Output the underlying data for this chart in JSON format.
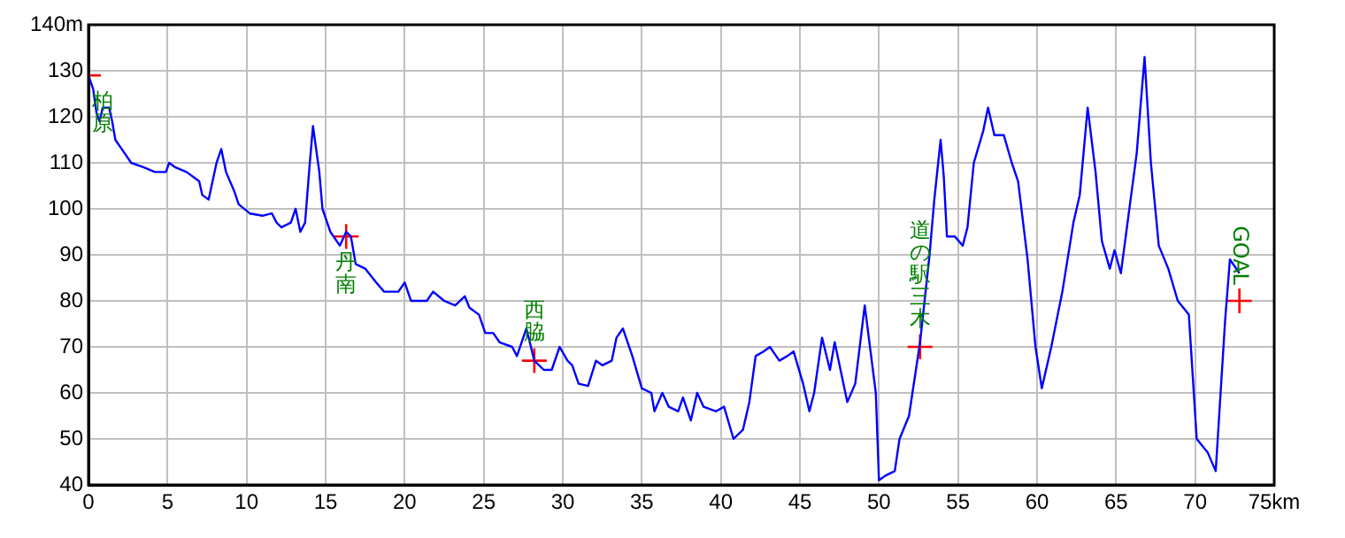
{
  "chart_data": {
    "type": "line",
    "xlim": [
      0,
      75
    ],
    "ylim": [
      40,
      140
    ],
    "xticks": [
      0,
      5,
      10,
      15,
      20,
      25,
      30,
      35,
      40,
      45,
      50,
      55,
      60,
      65,
      70,
      {
        "value": 75,
        "label": "75km"
      }
    ],
    "yticks": [
      40,
      50,
      60,
      70,
      80,
      90,
      100,
      110,
      120,
      130,
      {
        "value": 140,
        "label": "140m"
      }
    ],
    "grid": true,
    "legend": false,
    "marker": "none",
    "line_style": "solid",
    "series": [
      {
        "color": "#0000ff",
        "x": [
          0,
          0.3,
          0.5,
          0.7,
          0.9,
          1.3,
          1.5,
          1.7,
          2.1,
          2.7,
          3.5,
          4.2,
          4.9,
          5.1,
          5.5,
          6.2,
          7.0,
          7.2,
          7.6,
          8.1,
          8.4,
          8.7,
          9.2,
          9.5,
          10.2,
          11,
          11.6,
          11.9,
          12.2,
          12.8,
          13.1,
          13.4,
          13.7,
          14.0,
          14.2,
          14.6,
          14.8,
          15.3,
          15.9,
          16.3,
          16.6,
          16.9,
          17.5,
          18.2,
          18.7,
          19.6,
          20.0,
          20.4,
          21.4,
          21.8,
          22.5,
          23.2,
          23.8,
          24.1,
          24.7,
          25.1,
          25.6,
          26.0,
          26.8,
          27.1,
          27.7,
          28.2,
          28.8,
          29.3,
          29.8,
          30.3,
          30.6,
          31.0,
          31.6,
          32.1,
          32.5,
          33.1,
          33.4,
          33.8,
          34.4,
          35.0,
          35.6,
          35.8,
          36.3,
          36.7,
          37.3,
          37.6,
          38.1,
          38.5,
          38.9,
          39.7,
          40.2,
          40.8,
          41.4,
          41.8,
          42.2,
          42.7,
          43.1,
          43.7,
          44.2,
          44.6,
          45.2,
          45.6,
          45.9,
          46.4,
          46.9,
          47.2,
          48.0,
          48.5,
          49.1,
          49.8,
          50.0,
          50.4,
          51.0,
          51.3,
          51.9,
          52.6,
          53.2,
          53.5,
          53.9,
          54.1,
          54.3,
          54.8,
          55.3,
          55.6,
          56.0,
          56.6,
          56.9,
          57.3,
          57.9,
          58.4,
          58.8,
          59.4,
          59.9,
          60.3,
          60.9,
          61.6,
          62.3,
          62.7,
          63.2,
          63.7,
          64.1,
          64.6,
          64.9,
          65.3,
          65.8,
          66.3,
          66.8,
          67.2,
          67.7,
          68.3,
          68.9,
          69.6,
          70.1,
          70.8,
          71.3,
          71.9,
          72.2,
          72.8
        ],
        "values": [
          129,
          126,
          121,
          119,
          122,
          122,
          119,
          115,
          113,
          110,
          109,
          108,
          108,
          110,
          109,
          108,
          106,
          103,
          102,
          110,
          113,
          108,
          104,
          101,
          99,
          98.5,
          99,
          97,
          96,
          97,
          100,
          95,
          97,
          110,
          118,
          108,
          100,
          95,
          92,
          95,
          94,
          88,
          87,
          84,
          82,
          82,
          84,
          80,
          80,
          82,
          80,
          79,
          81,
          78.5,
          77,
          73,
          73,
          71,
          70,
          68,
          74,
          67,
          65,
          65,
          70,
          67,
          66,
          62,
          61.5,
          67,
          66,
          67,
          72,
          74,
          68,
          61,
          60,
          56,
          60,
          57,
          56,
          59,
          54,
          60,
          57,
          56,
          57,
          50,
          52,
          58,
          68,
          69,
          70,
          67,
          68,
          69,
          62,
          56,
          60,
          72,
          65,
          71,
          58,
          62,
          79,
          60,
          41,
          42,
          43,
          50,
          55,
          71,
          90,
          102,
          115,
          107,
          94,
          94,
          92,
          96,
          110,
          117,
          122,
          116,
          116,
          110,
          106,
          89,
          70,
          61,
          70,
          82,
          97,
          103,
          122,
          108,
          93,
          87,
          91,
          86,
          99,
          112,
          133,
          110,
          92,
          87,
          80,
          77,
          50,
          47,
          43,
          76,
          89,
          86
        ]
      },
      {
        "type": "scatter",
        "marker": "cross",
        "color": "#ff0000",
        "x": [
          0,
          16.3,
          28.2,
          52.6,
          72.8
        ],
        "values": [
          129,
          94,
          67,
          70,
          80
        ]
      }
    ],
    "annotations": [
      {
        "text": "柏原",
        "x": 0,
        "y": 129
      },
      {
        "text": "丹南",
        "x": 16.3,
        "y": 94
      },
      {
        "text": "西脇",
        "x": 28.2,
        "y": 67
      },
      {
        "text": "道の駅三木",
        "x": 52.6,
        "y": 70
      },
      {
        "text": "GOAL",
        "x": 72.8,
        "y": 80
      }
    ]
  }
}
